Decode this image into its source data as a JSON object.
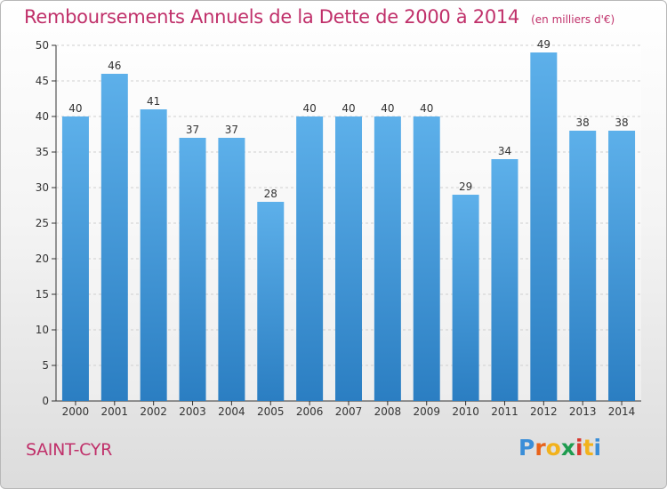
{
  "header": {
    "title": "Remboursements Annuels de la Dette de 2000 à 2014",
    "unit": "(en milliers d'€)"
  },
  "footer": {
    "town": "SAINT-CYR",
    "logo_letters": [
      "P",
      "r",
      "o",
      "x",
      "i",
      "t",
      "i"
    ],
    "logo_colors": [
      "#3a8ed8",
      "#e8631a",
      "#f2b21c",
      "#1e9c4f",
      "#d8382f",
      "#f2b21c",
      "#3a8ed8"
    ]
  },
  "colors": {
    "bar_top": "#5db0ea",
    "bar_bottom": "#2b7ec2",
    "title": "#c0306a",
    "axis": "#333333"
  },
  "chart_data": {
    "type": "bar",
    "categories": [
      "2000",
      "2001",
      "2002",
      "2003",
      "2004",
      "2005",
      "2006",
      "2007",
      "2008",
      "2009",
      "2010",
      "2011",
      "2012",
      "2013",
      "2014"
    ],
    "values": [
      40,
      46,
      41,
      37,
      37,
      28,
      40,
      40,
      40,
      40,
      29,
      34,
      49,
      38,
      38
    ],
    "ylim": [
      0,
      50
    ],
    "yticks": [
      0,
      5,
      10,
      15,
      20,
      25,
      30,
      35,
      40,
      45,
      50
    ],
    "grid": true,
    "legend": "none"
  }
}
